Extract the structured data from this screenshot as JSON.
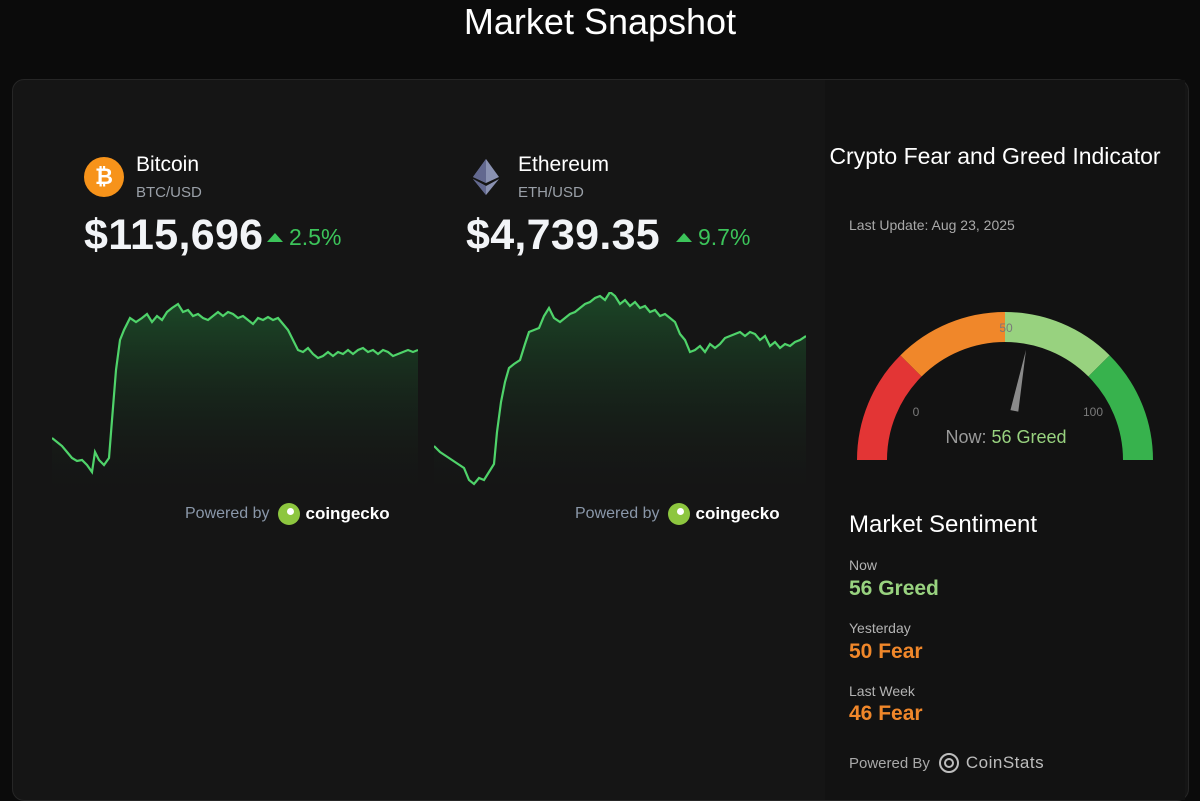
{
  "page": {
    "title": "Market Snapshot"
  },
  "coins": [
    {
      "name": "Bitcoin",
      "pair": "BTC/USD",
      "price": "$115,696",
      "change": "2.5%",
      "icon": "bitcoin-icon",
      "logo_glyph": "₿",
      "logo_color": "#f7931a",
      "powered_prefix": "Powered by",
      "powered_brand": "coingecko"
    },
    {
      "name": "Ethereum",
      "pair": "ETH/USD",
      "price": "$4,739.35",
      "change": "9.7%",
      "icon": "ethereum-icon",
      "logo_color": "#8a92b2",
      "powered_prefix": "Powered by",
      "powered_brand": "coingecko"
    }
  ],
  "fear_greed": {
    "title": "Crypto Fear and Greed Indicator",
    "last_update": "Last Update: Aug 23, 2025",
    "gauge": {
      "min_label": "0",
      "mid_label": "50",
      "max_label": "100",
      "value": 56,
      "now_prefix": "Now: ",
      "now_value": "56 Greed",
      "colors": [
        "#e33535",
        "#f0872a",
        "#98d27f",
        "#37b24d"
      ]
    },
    "sentiment_title": "Market Sentiment",
    "sentiment": [
      {
        "label": "Now",
        "value": "56 Greed",
        "color": "#98d27f"
      },
      {
        "label": "Yesterday",
        "value": "50 Fear",
        "color": "#f0872a"
      },
      {
        "label": "Last Week",
        "value": "46 Fear",
        "color": "#f0872a"
      }
    ],
    "powered_prefix": "Powered By",
    "powered_brand": "CoinStats"
  }
}
